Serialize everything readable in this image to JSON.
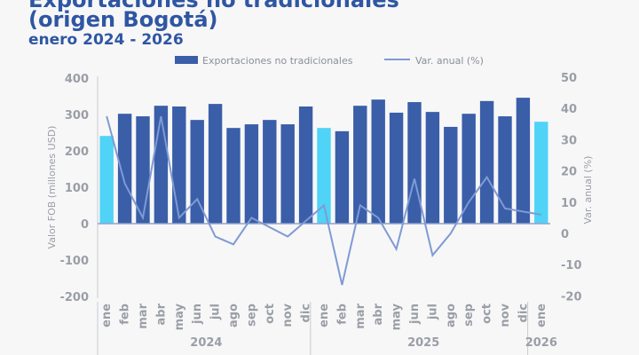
{
  "title_line1": "Exportaciones no tradicionales",
  "title_line2": "(origen Bogotá)",
  "subtitle": "enero 2024 - 2026",
  "chart_data": {
    "type": "bar+line",
    "categories": [
      "ene",
      "feb",
      "mar",
      "abr",
      "may",
      "jun",
      "jul",
      "ago",
      "sep",
      "oct",
      "nov",
      "dic",
      "ene",
      "feb",
      "mar",
      "abr",
      "may",
      "jun",
      "jul",
      "ago",
      "sep",
      "oct",
      "nov",
      "dic",
      "ene"
    ],
    "groups": [
      {
        "label": "2024",
        "count": 12
      },
      {
        "label": "2025",
        "count": 12
      },
      {
        "label": "2026",
        "count": 1
      }
    ],
    "series": [
      {
        "name": "Exportaciones no tradicionales",
        "type": "bar",
        "axis": "left",
        "color": "#3a5ea8",
        "highlight_color": "#4fd3f7",
        "highlight_indices": [
          0,
          12,
          24
        ],
        "values": [
          241,
          302,
          295,
          324,
          322,
          285,
          329,
          263,
          273,
          285,
          273,
          322,
          263,
          254,
          324,
          341,
          305,
          334,
          307,
          266,
          302,
          337,
          295,
          346,
          280
        ]
      },
      {
        "name": "Var. anual (%)",
        "type": "line",
        "axis": "right",
        "color": "#7f9ad4",
        "values": [
          37.5,
          16,
          5,
          37.5,
          5,
          11,
          -1,
          -3.5,
          5,
          2,
          -1,
          4,
          9,
          -16.5,
          9,
          5,
          -5,
          17.5,
          -7,
          0,
          10,
          18,
          8,
          7,
          6
        ]
      }
    ],
    "ylabel": "Valor FOB (millones USD)",
    "y2label": "Var. anual (%)",
    "ylim": [
      -200,
      400
    ],
    "y2lim": [
      -20,
      50
    ],
    "yticks": [
      -200,
      -100,
      0,
      100,
      200,
      300,
      400
    ],
    "y2ticks": [
      -20,
      -10,
      0,
      10,
      20,
      30,
      40,
      50
    ],
    "legend": "top-center"
  }
}
